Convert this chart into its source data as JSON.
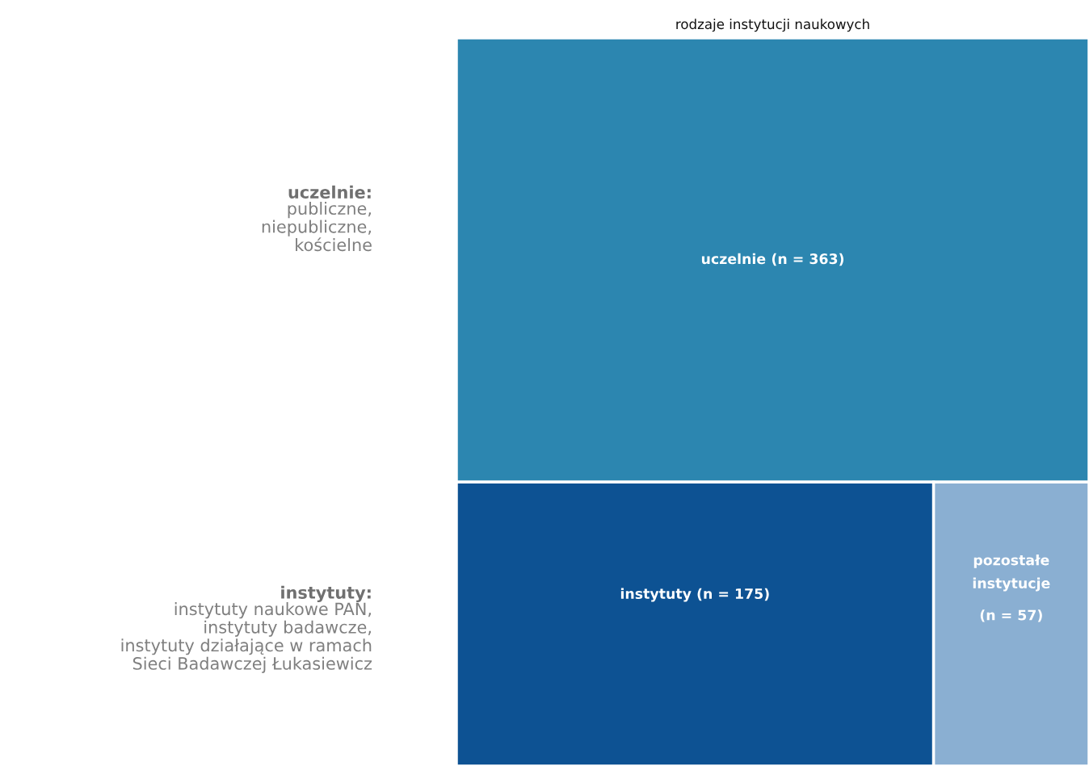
{
  "chart_data": {
    "type": "other",
    "title": "rodzaje instytucji naukowych",
    "categories": [
      "uczelnie",
      "instytuty",
      "pozostałe instytucje"
    ],
    "values": [
      363,
      175,
      57
    ],
    "colors": [
      "#2c86b0",
      "#0d5293",
      "#8aafd2"
    ],
    "value_labels": [
      "(n = 363)",
      "(n = 175)",
      "(n = 57)"
    ],
    "annotations": [
      "uczelnie:\npubliczne,\nniepubliczne,\nkościelne",
      "instytuty:\ninstytuty naukowe PAN,\ninstytuty badawcze,\ninstytuty działające w ramach\nSieci Badawczej Łukasiewicz"
    ]
  }
}
